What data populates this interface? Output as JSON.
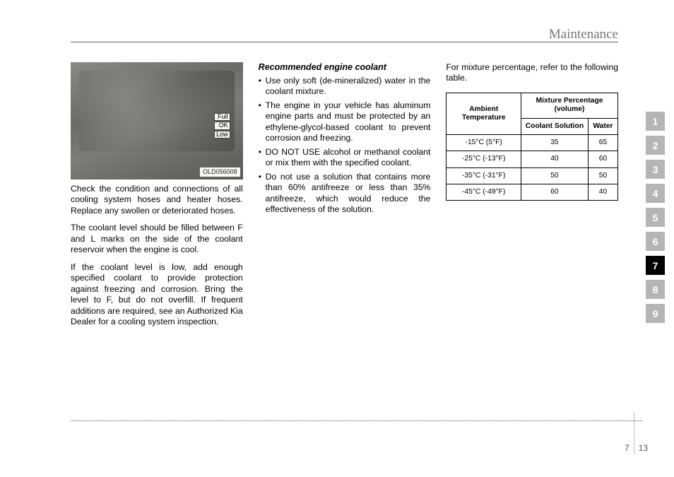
{
  "header": {
    "title": "Maintenance"
  },
  "image": {
    "markers": [
      "Full",
      "OK",
      "Low"
    ],
    "code": "OLD056008"
  },
  "col1": {
    "p1": "Check the condition and connections of all cooling system hoses and heater hoses. Replace any swollen or deteriorated hoses.",
    "p2": "The coolant level should be filled between F and L marks on the side of the coolant reservoir when the engine is cool.",
    "p3": "If the coolant level is low, add enough specified coolant to provide protection against freezing and corrosion. Bring the level to F, but do not overfill. If frequent additions are required, see an Authorized Kia Dealer for a cooling system inspection."
  },
  "col2": {
    "heading": "Recommended engine coolant",
    "b1": "Use only soft (de-mineralized) water in the coolant mixture.",
    "b2": "The engine in your vehicle has aluminum engine parts and must be protected by an ethylene-glycol-based coolant to prevent corrosion and freezing.",
    "b3": "DO NOT USE alcohol or methanol coolant or mix them with the specified coolant.",
    "b4": "Do not use a solution that contains more than 60% antifreeze or less than 35% antifreeze, which would reduce the effectiveness of the solution."
  },
  "col3": {
    "intro": "For mixture percentage, refer to the following table.",
    "table": {
      "h_ambient": "Ambient Temperature",
      "h_mixture": "Mixture Percentage (volume)",
      "h_coolant": "Coolant Solution",
      "h_water": "Water",
      "rows": [
        {
          "t": "-15°C (5°F)",
          "c": "35",
          "w": "65"
        },
        {
          "t": "-25°C (-13°F)",
          "c": "40",
          "w": "60"
        },
        {
          "t": "-35°C (-31°F)",
          "c": "50",
          "w": "50"
        },
        {
          "t": "-45°C (-49°F)",
          "c": "60",
          "w": "40"
        }
      ]
    }
  },
  "tabs": {
    "labels": [
      "1",
      "2",
      "3",
      "4",
      "5",
      "6",
      "7",
      "8",
      "9"
    ],
    "active": "7"
  },
  "footer": {
    "section": "7",
    "page": "13"
  }
}
